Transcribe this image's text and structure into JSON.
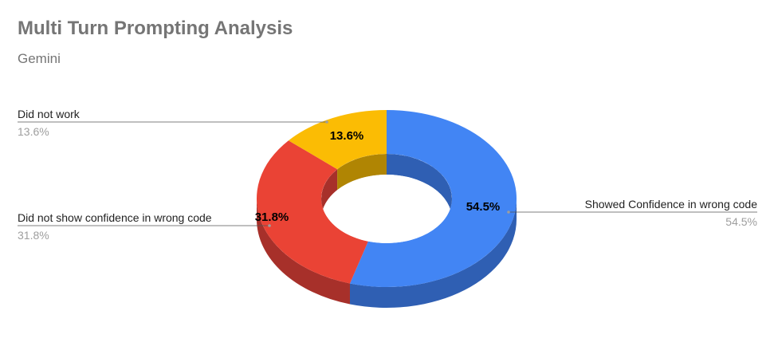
{
  "chart_data": {
    "type": "pie",
    "title": "Multi Turn Prompting Analysis",
    "subtitle": "Gemini",
    "slices": [
      {
        "label": "Showed Confidence in wrong code",
        "value": 54.5,
        "display": "54.5%",
        "color": "#4285F4",
        "side_color": "#2F5FB3"
      },
      {
        "label": "Did not show confidence in wrong code",
        "value": 31.8,
        "display": "31.8%",
        "color": "#EA4335",
        "side_color": "#A7302A"
      },
      {
        "label": "Did not work",
        "value": 13.6,
        "display": "13.6%",
        "color": "#FBBC04",
        "side_color": "#B08503"
      }
    ],
    "donut": true,
    "three_d": true,
    "legend": "labeled"
  }
}
